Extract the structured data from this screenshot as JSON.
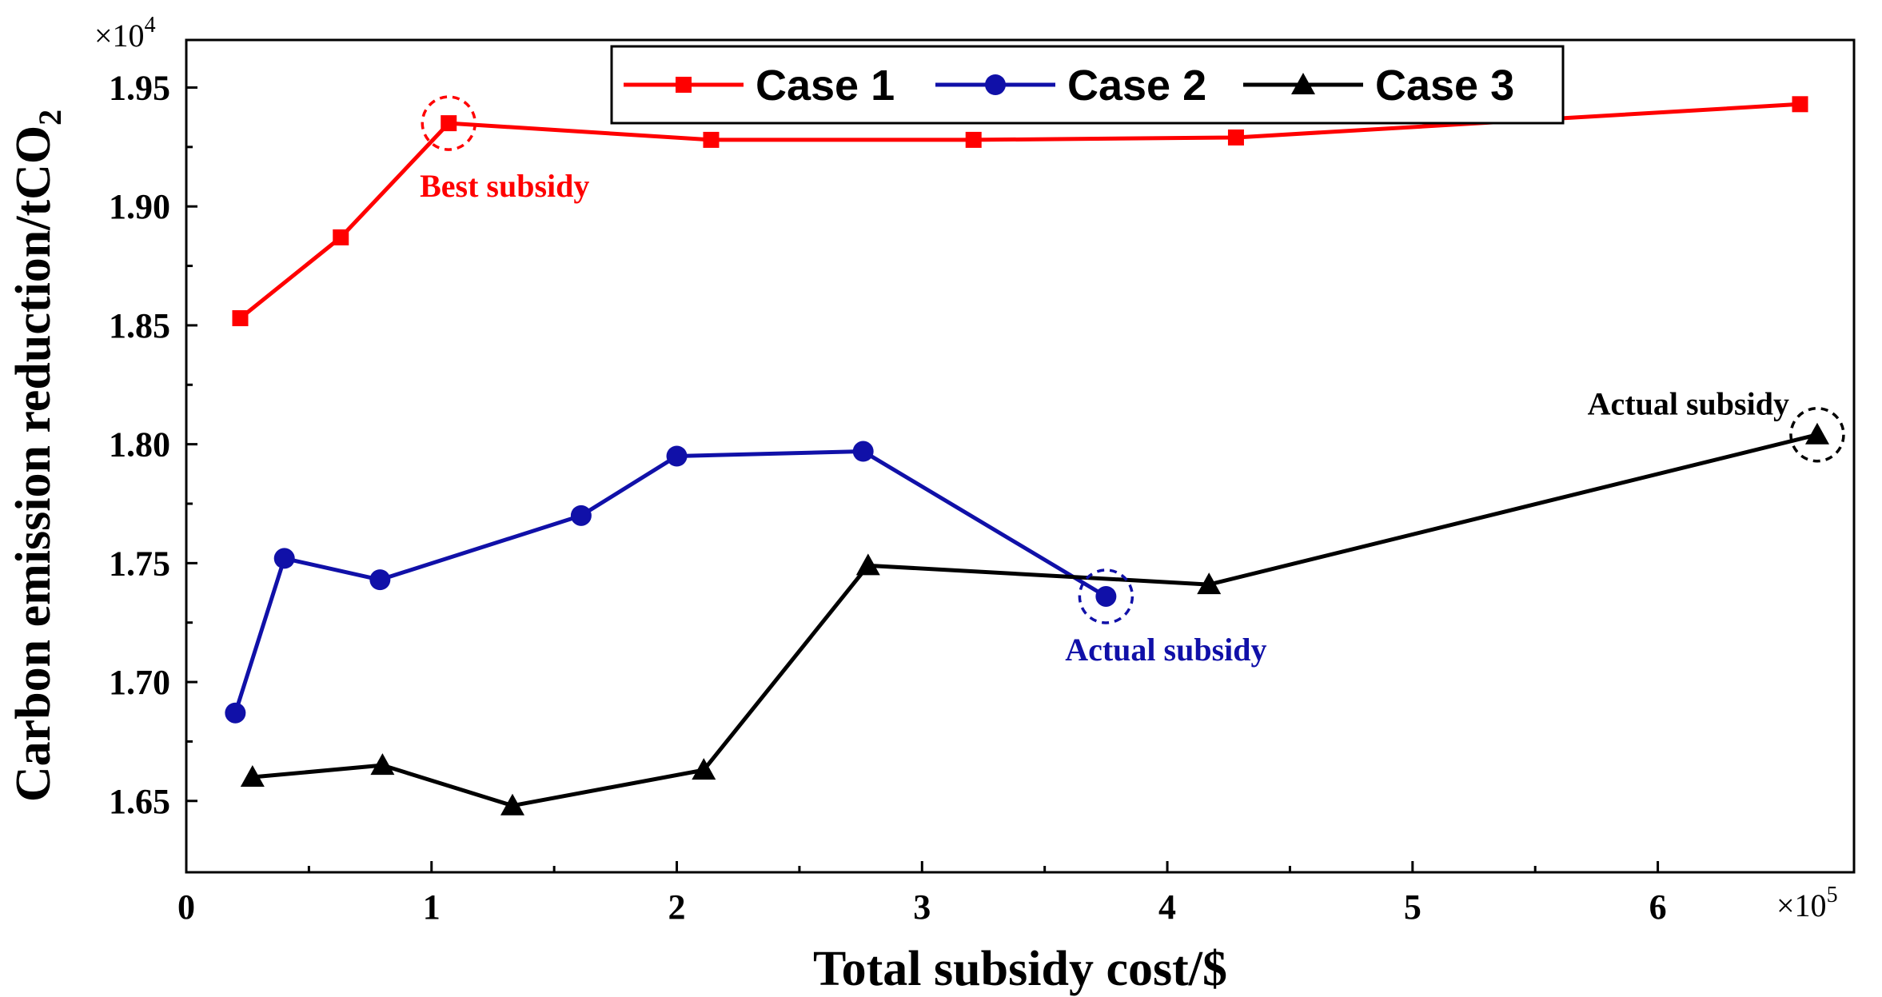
{
  "chart_data": {
    "type": "line",
    "title": "",
    "xlabel": "Total subsidy cost/$",
    "ylabel": "Carbon emission reduction/tCO",
    "ylabel_subscript": "2",
    "x_multiplier": "×10",
    "x_multiplier_exp": "5",
    "y_multiplier": "×10",
    "y_multiplier_exp": "4",
    "xlim": [
      0,
      6.8
    ],
    "ylim": [
      1.62,
      1.97
    ],
    "x_ticks": [
      0,
      1,
      2,
      3,
      4,
      5,
      6
    ],
    "x_tick_labels": [
      "0",
      "1",
      "2",
      "3",
      "4",
      "5",
      "6"
    ],
    "y_ticks": [
      1.65,
      1.7,
      1.75,
      1.8,
      1.85,
      1.9,
      1.95
    ],
    "y_tick_labels": [
      "1.65",
      "1.70",
      "1.75",
      "1.80",
      "1.85",
      "1.90",
      "1.95"
    ],
    "legend_position": "top-center",
    "series": [
      {
        "name": "Case 1",
        "color": "#ff0000",
        "marker": "square",
        "x": [
          0.22,
          0.63,
          1.07,
          2.14,
          3.21,
          4.28,
          6.58
        ],
        "y": [
          1.853,
          1.887,
          1.935,
          1.928,
          1.928,
          1.929,
          1.943
        ]
      },
      {
        "name": "Case 2",
        "color": "#1010a8",
        "marker": "circle",
        "x": [
          0.2,
          0.4,
          0.79,
          1.61,
          2.0,
          2.76,
          3.75
        ],
        "y": [
          1.687,
          1.752,
          1.743,
          1.77,
          1.795,
          1.797,
          1.736
        ]
      },
      {
        "name": "Case 3",
        "color": "#000000",
        "marker": "triangle",
        "x": [
          0.27,
          0.8,
          1.33,
          2.11,
          2.78,
          4.17,
          6.65
        ],
        "y": [
          1.66,
          1.665,
          1.648,
          1.663,
          1.749,
          1.741,
          1.804
        ]
      }
    ],
    "annotations": [
      {
        "text": "Best subsidy",
        "color": "#ff0000",
        "series": 0,
        "point": 2
      },
      {
        "text": "Actual subsidy",
        "color": "#1010a8",
        "series": 1,
        "point": 6
      },
      {
        "text": "Actual subsidy",
        "color": "#000000",
        "series": 2,
        "point": 6
      }
    ]
  }
}
